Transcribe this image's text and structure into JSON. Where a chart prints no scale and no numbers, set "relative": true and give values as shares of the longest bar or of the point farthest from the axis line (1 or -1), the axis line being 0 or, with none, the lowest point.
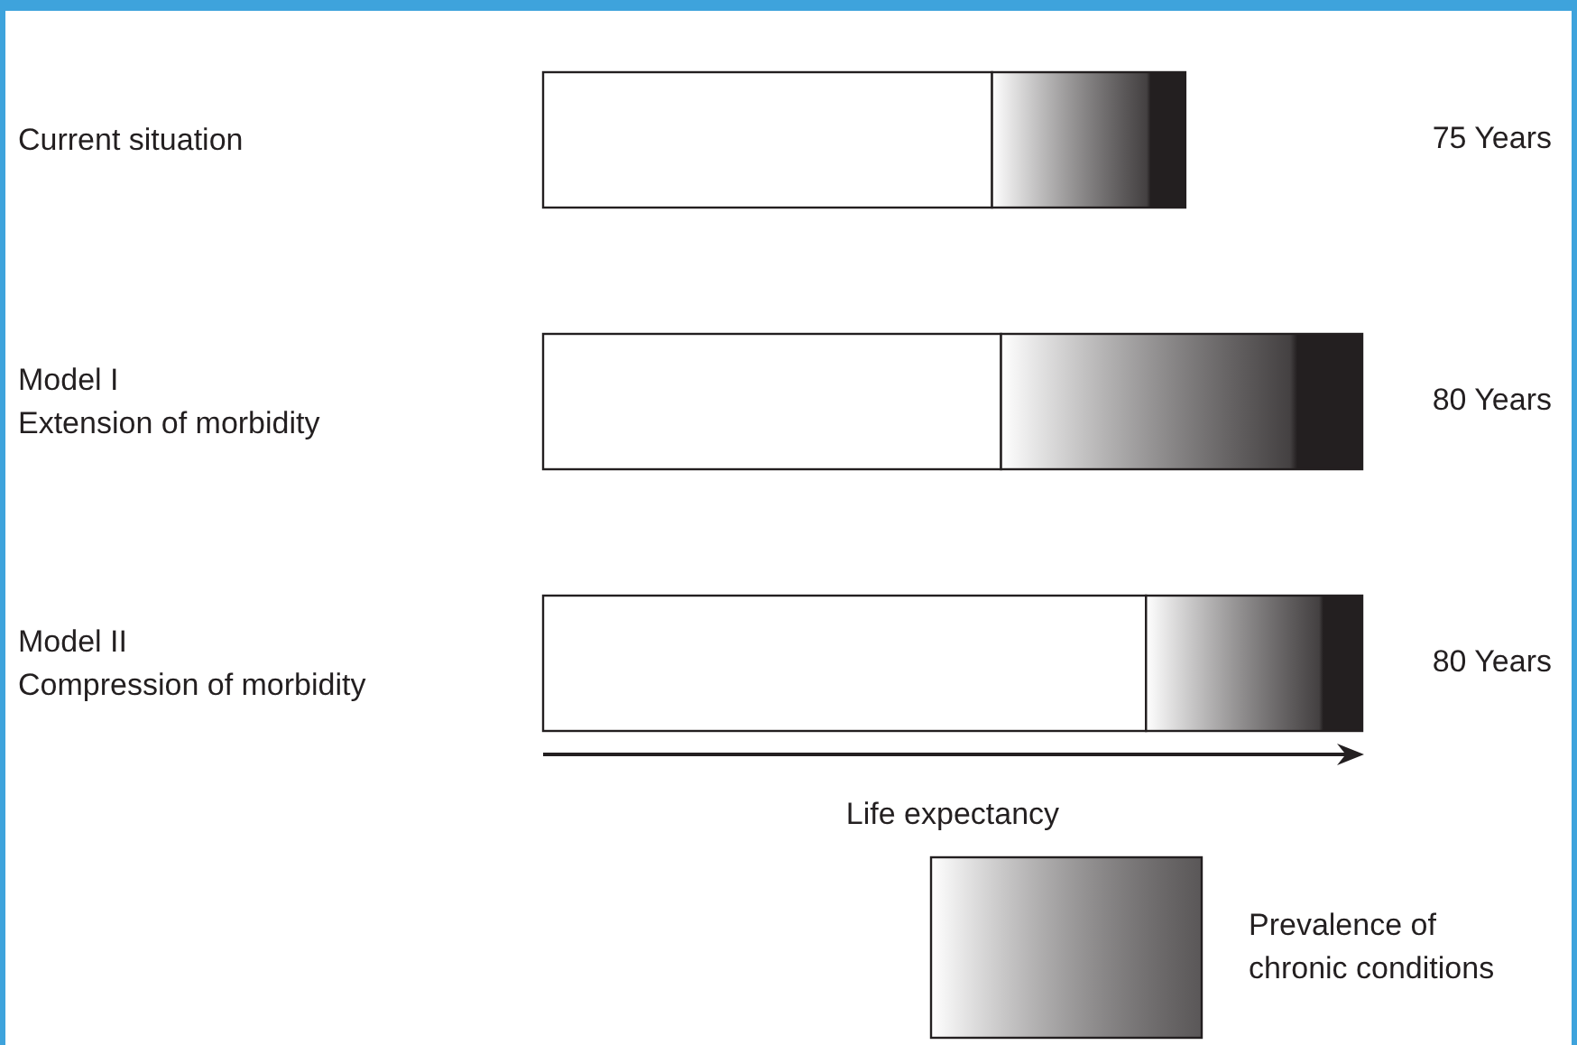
{
  "chart_data": {
    "type": "bar",
    "orientation": "horizontal",
    "stacked": true,
    "relative": true,
    "categories": [
      "Current situation",
      "Model I\nExtension of morbidity",
      "Model II\nCompression of morbidity"
    ],
    "series": [
      {
        "color": "#ffffff",
        "values": [
          0.548,
          0.559,
          0.736
        ]
      },
      {
        "color": "#231f20",
        "values": [
          0.236,
          0.441,
          0.264
        ]
      }
    ],
    "xlabel": "Life expectancy",
    "tick_labels": "y",
    "annotations": [
      "75 Years",
      "80 Years",
      "80 Years",
      "Prevalence of\nchronic conditions"
    ],
    "grid": false
  }
}
